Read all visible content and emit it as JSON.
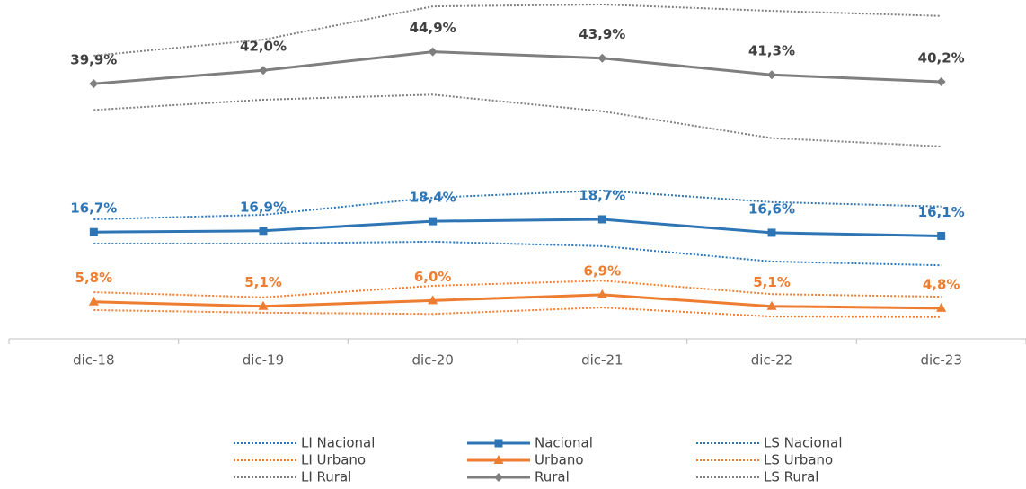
{
  "chart_data": {
    "type": "line",
    "categories": [
      "dic-18",
      "dic-19",
      "dic-20",
      "dic-21",
      "dic-22",
      "dic-23"
    ],
    "ylim": [
      0,
      53
    ],
    "series": [
      {
        "name": "LI Nacional",
        "color": "#2e75b6",
        "style": "dotted",
        "values": [
          14.9,
          14.9,
          15.2,
          14.5,
          12.1,
          11.5
        ]
      },
      {
        "name": "Nacional",
        "color": "#2e75b6",
        "style": "solid",
        "marker": "square",
        "values": [
          16.7,
          16.9,
          18.4,
          18.7,
          16.6,
          16.1
        ],
        "value_labels": [
          "16,7%",
          "16,9%",
          "18,4%",
          "18,7%",
          "16,6%",
          "16,1%"
        ]
      },
      {
        "name": "LS Nacional",
        "color": "#2e75b6",
        "style": "dotted",
        "values": [
          18.7,
          19.4,
          22.1,
          23.2,
          21.4,
          20.7
        ]
      },
      {
        "name": "LI Urbano",
        "color": "#ed7d31",
        "style": "dotted",
        "values": [
          4.5,
          4.1,
          3.9,
          4.9,
          3.5,
          3.4
        ]
      },
      {
        "name": "Urbano",
        "color": "#ed7d31",
        "style": "solid",
        "marker": "triangle",
        "values": [
          5.8,
          5.1,
          6.0,
          6.9,
          5.1,
          4.8
        ],
        "value_labels": [
          "5,8%",
          "5,1%",
          "6,0%",
          "6,9%",
          "5,1%",
          "4,8%"
        ]
      },
      {
        "name": "LS Urbano",
        "color": "#ed7d31",
        "style": "dotted",
        "values": [
          7.3,
          6.5,
          8.3,
          9.1,
          7.0,
          6.6
        ]
      },
      {
        "name": "LI Rural",
        "color": "#7f7f7f",
        "style": "dotted",
        "values": [
          35.8,
          37.4,
          38.2,
          35.6,
          31.4,
          30.1
        ]
      },
      {
        "name": "Rural",
        "color": "#7f7f7f",
        "style": "solid",
        "marker": "diamond",
        "values": [
          39.9,
          42.0,
          44.9,
          43.9,
          41.3,
          40.2
        ],
        "value_labels": [
          "39,9%",
          "42,0%",
          "44,9%",
          "43,9%",
          "41,3%",
          "40,2%"
        ]
      },
      {
        "name": "LS Rural",
        "color": "#7f7f7f",
        "style": "dotted",
        "values": [
          44.3,
          46.8,
          52.0,
          52.3,
          51.3,
          50.5
        ]
      }
    ]
  }
}
